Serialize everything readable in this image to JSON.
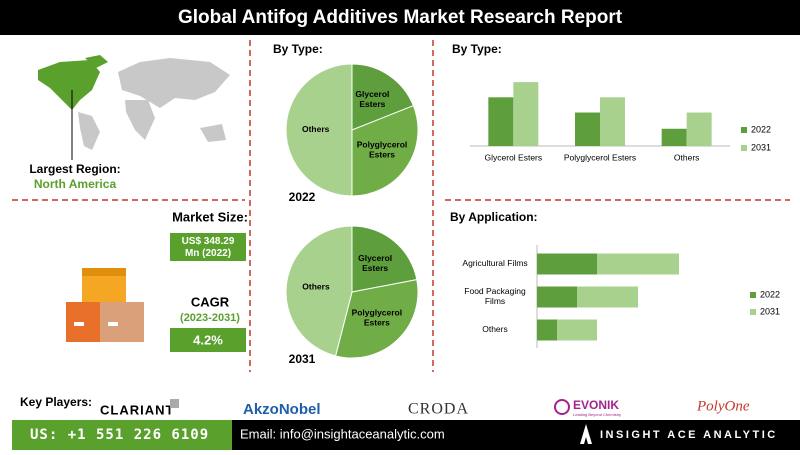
{
  "header": {
    "title": "Global Antifog Additives Market Research Report"
  },
  "region": {
    "label": "Largest Region:",
    "value": "North America"
  },
  "market_size": {
    "label": "Market Size:",
    "value": "US$ 348.29 Mn (2022)"
  },
  "cagr": {
    "label": "CAGR",
    "period": "(2023-2031)",
    "value": "4.2%"
  },
  "chart_data": [
    {
      "type": "pie",
      "title": "By Type:",
      "year": "2022",
      "categories": [
        "Glycerol Esters",
        "Polyglycerol Esters",
        "Others"
      ],
      "values": [
        19,
        31,
        50
      ],
      "colors": [
        "#5e9e3c",
        "#70ad47",
        "#a9d18e"
      ]
    },
    {
      "type": "pie",
      "year": "2031",
      "categories": [
        "Glycerol Esters",
        "Polyglycerol Esters",
        "Others"
      ],
      "values": [
        22,
        32,
        46
      ],
      "colors": [
        "#5e9e3c",
        "#70ad47",
        "#a9d18e"
      ]
    },
    {
      "type": "bar",
      "title": "By Type:",
      "categories": [
        "Glycerol Esters",
        "Polyglycerol Esters",
        "Others"
      ],
      "series": [
        {
          "name": "2022",
          "color": "#5e9e3c",
          "values": [
            48,
            33,
            17
          ]
        },
        {
          "name": "2031",
          "color": "#a9d18e",
          "values": [
            63,
            48,
            33
          ]
        }
      ],
      "ylim": [
        0,
        70
      ],
      "legend": "right"
    },
    {
      "type": "hbar",
      "title": "By Application:",
      "stacked": true,
      "categories": [
        "Agricultural Films",
        "Food Packaging Films",
        "Others"
      ],
      "series": [
        {
          "name": "2022",
          "color": "#5e9e3c",
          "values": [
            60,
            40,
            20
          ]
        },
        {
          "name": "2031",
          "color": "#a9d18e",
          "values": [
            82,
            61,
            40
          ]
        }
      ],
      "xlim": [
        0,
        150
      ],
      "legend": "right"
    }
  ],
  "key_players": {
    "label": "Key Players:",
    "companies": [
      "CLARIANT",
      "AkzoNobel",
      "CRODA",
      "EVONIK",
      "PolyOne"
    ],
    "evonik_tagline": "Leading Beyond Chemistry"
  },
  "footer": {
    "phone": "US: +1 551 226 6109",
    "email": "Email: info@insightaceanalytic.com",
    "brand": "INSIGHT ACE ANALYTIC"
  }
}
